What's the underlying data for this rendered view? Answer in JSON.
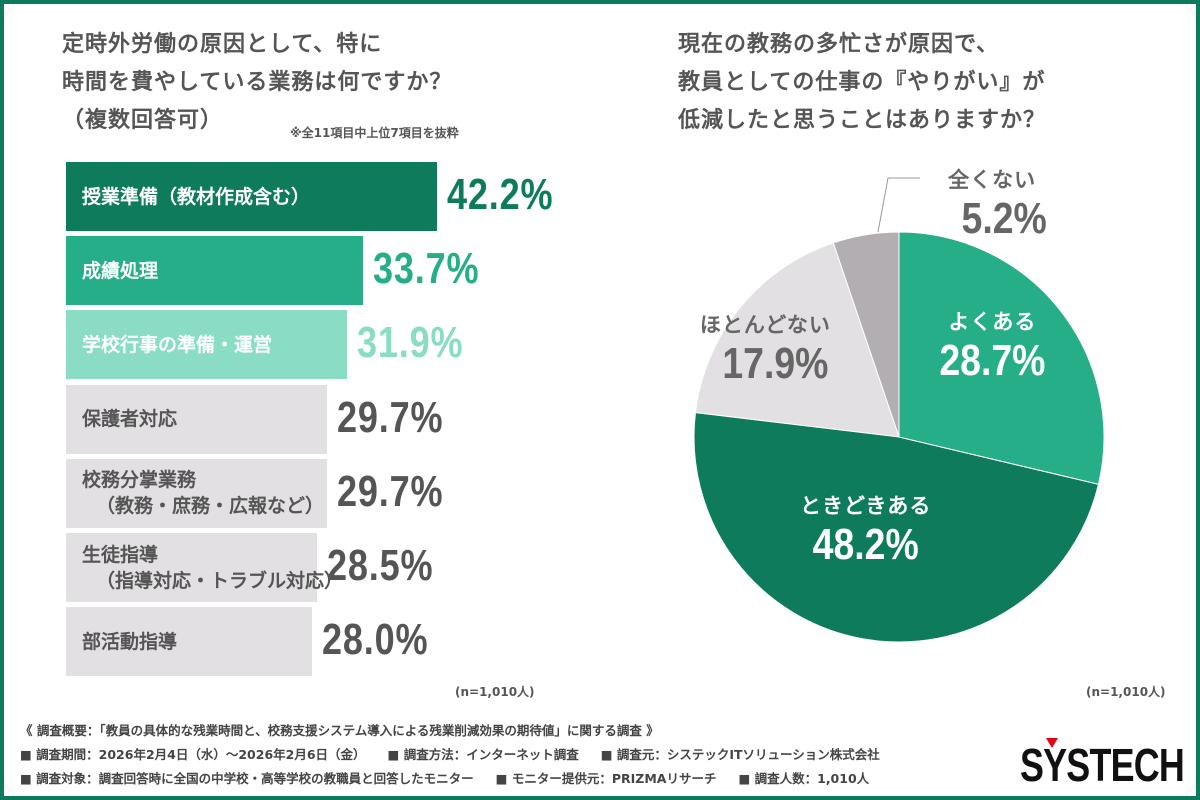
{
  "colors": {
    "border": "#0e7c5c",
    "dark_green": "#0e7c5c",
    "mid_green": "#25ae88",
    "light_green": "#8adcc4",
    "grey": "#e3e0e3",
    "dark_grey": "#b2aeb2",
    "text": "#555555"
  },
  "left": {
    "title_line1": "定時外労働の原因として、特に",
    "title_line2": "時間を費やしている業務は何ですか？",
    "title_line3": "（複数回答可）",
    "note": "※全11項目中上位7項目を抜粋",
    "n": "(n=1,010人)"
  },
  "right": {
    "title_line1": "現在の教務の多忙さが原因で、",
    "title_line2": "教員としての仕事の『やりがい』が",
    "title_line3": "低減したと思うことはありますか？",
    "n": "(n=1,010人)"
  },
  "chart_data": [
    {
      "type": "bar",
      "orientation": "horizontal",
      "categories": [
        "授業準備（教材作成含む）",
        "成績処理",
        "学校行事の準備・運営",
        "保護者対応",
        "校務分掌業務（教務・庶務・広報など）",
        "生徒指導（指導対応・トラブル対応）",
        "部活動指導"
      ],
      "category_lines": [
        [
          "授業準備（教材作成含む）"
        ],
        [
          "成績処理"
        ],
        [
          "学校行事の準備・運営"
        ],
        [
          "保護者対応"
        ],
        [
          "校務分掌業務",
          "（教務・庶務・広報など）"
        ],
        [
          "生徒指導",
          "（指導対応・トラブル対応）"
        ],
        [
          "部活動指導"
        ]
      ],
      "values": [
        42.2,
        33.7,
        31.9,
        29.7,
        29.7,
        28.5,
        28.0
      ],
      "labels": [
        "42.2%",
        "33.7%",
        "31.9%",
        "29.7%",
        "29.7%",
        "28.5%",
        "28.0%"
      ],
      "bar_colors": [
        "#0e7c5c",
        "#25ae88",
        "#8adcc4",
        "#e3e0e3",
        "#e3e0e3",
        "#e3e0e3",
        "#e3e0e3"
      ],
      "label_colors": [
        "#0e7c5c",
        "#25ae88",
        "#8adcc4",
        "#555555",
        "#555555",
        "#555555",
        "#555555"
      ],
      "bar_text_colors": [
        "#ffffff",
        "#ffffff",
        "#ffffff",
        "#555555",
        "#555555",
        "#555555",
        "#555555"
      ],
      "unit": "%"
    },
    {
      "type": "pie",
      "start": "top",
      "direction": "clockwise",
      "categories": [
        "よくある",
        "ときどきある",
        "ほとんどない",
        "全くない"
      ],
      "values": [
        28.7,
        48.2,
        17.9,
        5.2
      ],
      "labels": [
        "28.7%",
        "48.2%",
        "17.9%",
        "5.2%"
      ],
      "colors": [
        "#25ae88",
        "#0e7c5c",
        "#e3e0e3",
        "#b2aeb2"
      ]
    }
  ],
  "footer": {
    "line1": "《 調査概要：「教員の具体的な残業時間と、校務支援システム導入による残業削減効果の期待値」に関する調査 》",
    "line2": [
      "■ 調査期間：2026年2月4日（水）〜2026年2月6日（金）",
      "■ 調査方法：インターネット調査",
      "■ 調査元：システックITソリューション株式会社"
    ],
    "line3": [
      "■ 調査対象：調査回答時に全国の中学校・高等学校の教職員と回答したモニター",
      "■ モニター提供元：PRIZMAリサーチ",
      "■ 調査人数：1,010人"
    ],
    "logo": "SYSTECH"
  }
}
